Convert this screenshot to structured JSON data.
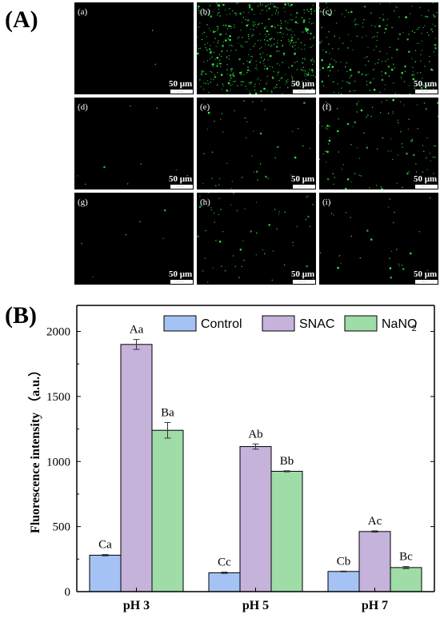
{
  "panels": {
    "a_label": "(A)",
    "b_label": "(B)"
  },
  "micrographs": [
    {
      "label": "(a)",
      "scale_text": "50 μm",
      "scale_small": "50 μm",
      "density": 2
    },
    {
      "label": "(b)",
      "scale_text": "50 μm",
      "scale_small": "50 μm",
      "density": 520
    },
    {
      "label": "(c)",
      "scale_text": "50 μm",
      "scale_small": "50 μm",
      "density": 230
    },
    {
      "label": "(d)",
      "scale_text": "50 μm",
      "scale_small": "50 μm",
      "density": 10
    },
    {
      "label": "(e)",
      "scale_text": "50 μm",
      "scale_small": "50 μm",
      "density": 45
    },
    {
      "label": "(f)",
      "scale_text": "50 μm",
      "scale_small": "50 μm",
      "density": 110
    },
    {
      "label": "(g)",
      "scale_text": "50 μm",
      "scale_small": "50 μm",
      "density": 6
    },
    {
      "label": "(h)",
      "scale_text": "50 μm",
      "scale_small": "50 μm",
      "density": 60
    },
    {
      "label": "(i)",
      "scale_text": "50 μm",
      "scale_small": "50 μm",
      "density": 30
    }
  ],
  "chart_data": {
    "type": "bar",
    "categories": [
      "pH 3",
      "pH 5",
      "pH 7"
    ],
    "ylabel": "Fluorescence intensity （a.u.）",
    "xlabel": "",
    "ylim": [
      0,
      2200
    ],
    "yticks": [
      0,
      500,
      1000,
      1500,
      2000
    ],
    "legend_position": "top",
    "series": [
      {
        "name": "Control",
        "color": "#a4c2f4",
        "values": [
          280,
          145,
          155
        ],
        "errors": [
          5,
          5,
          3
        ],
        "labels": [
          "Ca",
          "Cc",
          "Cb"
        ]
      },
      {
        "name": "SNAC",
        "color": "#c5b3db",
        "values": [
          1900,
          1115,
          462
        ],
        "errors": [
          38,
          20,
          5
        ],
        "labels": [
          "Aa",
          "Ab",
          "Ac"
        ]
      },
      {
        "name": "NaNO",
        "name_sub": "2",
        "color": "#9fdca7",
        "values": [
          1240,
          925,
          185
        ],
        "errors": [
          60,
          4,
          8
        ],
        "labels": [
          "Ba",
          "Bb",
          "Bc"
        ]
      }
    ]
  }
}
